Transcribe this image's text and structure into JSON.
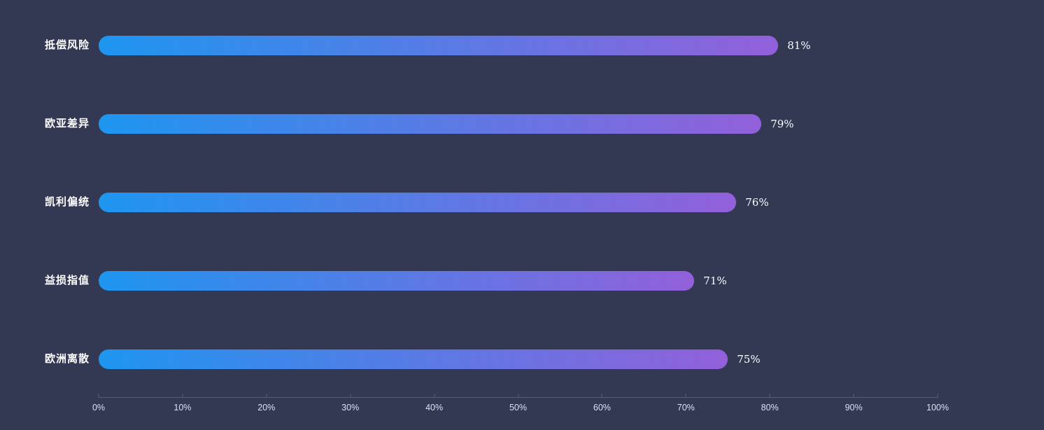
{
  "chart_data": {
    "type": "bar",
    "orientation": "horizontal",
    "title": "",
    "xlabel": "",
    "ylabel": "",
    "categories": [
      "抵偿风险",
      "欧亚差异",
      "凯利偏统",
      "益损指值",
      "欧洲离散"
    ],
    "values": [
      81,
      79,
      76,
      71,
      75
    ],
    "value_labels": [
      "81%",
      "79%",
      "76%",
      "71%",
      "75%"
    ],
    "x_ticks": [
      "0%",
      "10%",
      "20%",
      "30%",
      "40%",
      "50%",
      "60%",
      "70%",
      "80%",
      "90%",
      "100%"
    ],
    "xlim": [
      0,
      100
    ],
    "grid": false,
    "legend": "none",
    "colors": {
      "background": "#333853",
      "bar_gradient_start": "#1e96f0",
      "bar_gradient_end": "#9260da",
      "axis_line": "#575c7a",
      "tick_label": "#dde1ef",
      "category_label": "#ffffff",
      "value_label": "#ffffff"
    }
  }
}
